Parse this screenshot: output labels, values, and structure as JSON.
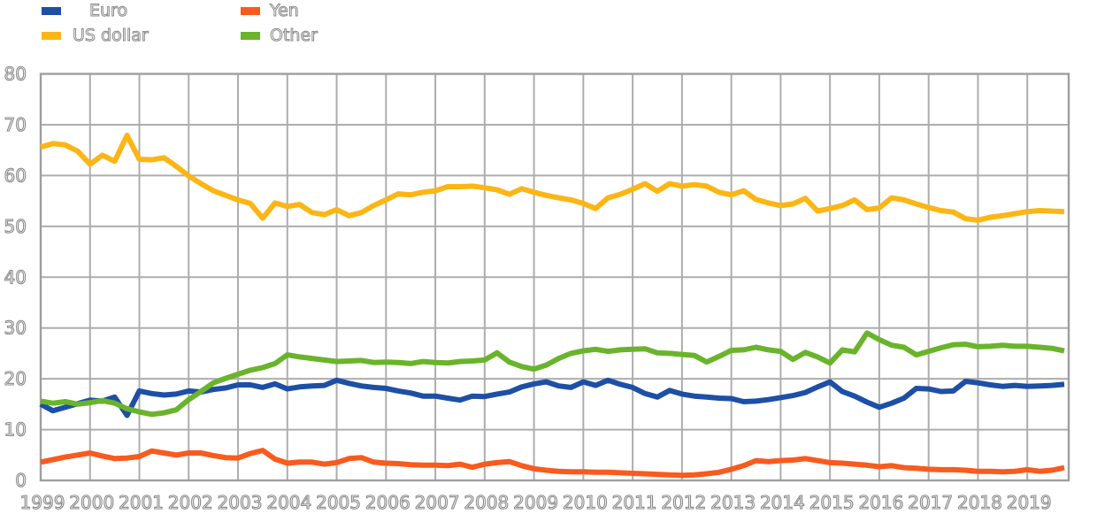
{
  "chart_data": {
    "type": "line",
    "title": "",
    "x_start": "1999 Q1",
    "x_frequency": "quarterly",
    "x_tick_labels": [
      "1999",
      "2000",
      "2001",
      "2002",
      "2003",
      "2004",
      "2005",
      "2006",
      "2007",
      "2008",
      "2009",
      "2010",
      "2011",
      "2012",
      "2013",
      "2014",
      "2015",
      "2016",
      "2017",
      "2018",
      "2019"
    ],
    "ylim": [
      0,
      80
    ],
    "yticks": [
      0,
      10,
      20,
      30,
      40,
      50,
      60,
      70,
      80
    ],
    "grid": true,
    "legend_position": "top-left",
    "series": [
      {
        "name": "Euro",
        "color": "#1d4fa6",
        "values": [
          15.0,
          13.7,
          14.4,
          15.1,
          15.8,
          15.6,
          16.4,
          12.8,
          17.6,
          17.1,
          16.8,
          17.0,
          17.6,
          17.4,
          17.9,
          18.2,
          18.8,
          18.8,
          18.3,
          19.0,
          18.0,
          18.4,
          18.6,
          18.7,
          19.7,
          19.1,
          18.6,
          18.3,
          18.1,
          17.6,
          17.2,
          16.6,
          16.6,
          16.2,
          15.8,
          16.6,
          16.5,
          17.0,
          17.4,
          18.4,
          19.0,
          19.4,
          18.6,
          18.3,
          19.4,
          18.7,
          19.7,
          18.9,
          18.3,
          17.1,
          16.4,
          17.7,
          17.0,
          16.6,
          16.4,
          16.2,
          16.1,
          15.5,
          15.6,
          15.9,
          16.3,
          16.7,
          17.3,
          18.4,
          19.4,
          17.5,
          16.6,
          15.4,
          14.4,
          15.2,
          16.2,
          18.1,
          18.0,
          17.5,
          17.6,
          19.5,
          19.2,
          18.8,
          18.5,
          18.7,
          18.5,
          18.6,
          18.7,
          18.9
        ]
      },
      {
        "name": "US dollar",
        "color": "#fbb615",
        "values": [
          65.6,
          66.3,
          66.0,
          64.8,
          62.2,
          64.0,
          62.8,
          67.9,
          63.2,
          63.1,
          63.5,
          61.8,
          59.9,
          58.4,
          57.0,
          56.1,
          55.2,
          54.5,
          51.6,
          54.6,
          53.9,
          54.3,
          52.7,
          52.3,
          53.3,
          52.1,
          52.7,
          54.1,
          55.2,
          56.4,
          56.2,
          56.7,
          57.0,
          57.8,
          57.8,
          57.9,
          57.6,
          57.2,
          56.3,
          57.4,
          56.7,
          56.1,
          55.6,
          55.2,
          54.5,
          53.5,
          55.6,
          56.3,
          57.3,
          58.4,
          56.9,
          58.4,
          57.9,
          58.2,
          57.9,
          56.7,
          56.2,
          57.0,
          55.3,
          54.6,
          54.1,
          54.4,
          55.5,
          53.0,
          53.5,
          54.1,
          55.2,
          53.3,
          53.6,
          55.6,
          55.2,
          54.4,
          53.7,
          53.1,
          52.8,
          51.5,
          51.2,
          51.8,
          52.1,
          52.5,
          52.9,
          53.1,
          53.0,
          52.9
        ]
      },
      {
        "name": "Yen",
        "color": "#fa5a1e",
        "values": [
          3.6,
          4.1,
          4.6,
          5.0,
          5.4,
          4.8,
          4.3,
          4.4,
          4.7,
          5.8,
          5.4,
          5.0,
          5.4,
          5.4,
          4.9,
          4.5,
          4.4,
          5.3,
          5.9,
          4.2,
          3.4,
          3.6,
          3.6,
          3.2,
          3.5,
          4.3,
          4.5,
          3.6,
          3.4,
          3.3,
          3.1,
          3.0,
          3.0,
          2.9,
          3.2,
          2.6,
          3.2,
          3.5,
          3.7,
          2.9,
          2.3,
          2.0,
          1.8,
          1.7,
          1.7,
          1.6,
          1.6,
          1.5,
          1.4,
          1.3,
          1.2,
          1.1,
          1.0,
          1.1,
          1.3,
          1.6,
          2.2,
          2.9,
          3.9,
          3.7,
          3.9,
          4.0,
          4.3,
          3.9,
          3.5,
          3.4,
          3.2,
          3.0,
          2.7,
          2.9,
          2.5,
          2.4,
          2.2,
          2.1,
          2.1,
          2.0,
          1.8,
          1.8,
          1.7,
          1.8,
          2.1,
          1.8,
          2.0,
          2.5
        ]
      },
      {
        "name": "Other",
        "color": "#6ab42c",
        "values": [
          15.6,
          15.2,
          15.5,
          15.0,
          15.3,
          15.7,
          15.2,
          14.1,
          13.5,
          13.0,
          13.3,
          13.9,
          15.9,
          17.5,
          19.2,
          20.1,
          20.9,
          21.7,
          22.2,
          23.0,
          24.7,
          24.3,
          24.0,
          23.7,
          23.4,
          23.5,
          23.6,
          23.2,
          23.3,
          23.2,
          23.0,
          23.4,
          23.2,
          23.1,
          23.4,
          23.5,
          23.7,
          25.1,
          23.3,
          22.4,
          21.9,
          22.7,
          24.0,
          25.0,
          25.5,
          25.8,
          25.4,
          25.7,
          25.8,
          25.9,
          25.1,
          25.0,
          24.8,
          24.6,
          23.3,
          24.4,
          25.6,
          25.7,
          26.2,
          25.7,
          25.4,
          23.8,
          25.2,
          24.3,
          23.1,
          25.7,
          25.3,
          29.0,
          27.7,
          26.6,
          26.2,
          24.7,
          25.4,
          26.1,
          26.7,
          26.8,
          26.3,
          26.4,
          26.6,
          26.4,
          26.4,
          26.2,
          26.0,
          25.5
        ]
      }
    ],
    "style": {
      "background": "#ffffff",
      "grid_color": "#adadad",
      "frame_color": "#9e9e9e",
      "tick_text_outline": "#8a8a8a",
      "line_width": 6
    }
  }
}
